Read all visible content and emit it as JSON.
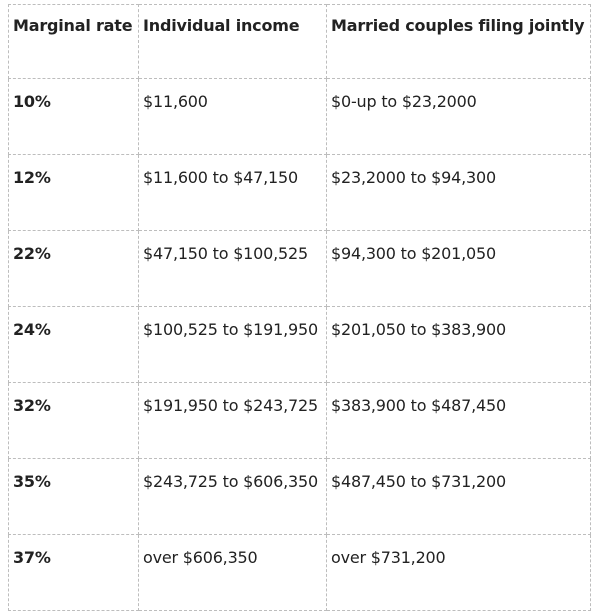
{
  "table": {
    "headers": [
      "Marginal rate",
      "Individual income",
      "Married couples filing jointly"
    ],
    "rows": [
      {
        "rate": "10%",
        "individual": "$11,600",
        "married": "$0-up to $23,2000"
      },
      {
        "rate": "12%",
        "individual": "$11,600 to $47,150",
        "married": "$23,2000 to $94,300"
      },
      {
        "rate": "22%",
        "individual": "$47,150 to $100,525",
        "married": "$94,300 to $201,050"
      },
      {
        "rate": "24%",
        "individual": "$100,525 to $191,950",
        "married": "$201,050 to $383,900"
      },
      {
        "rate": "32%",
        "individual": "$191,950 to $243,725",
        "married": "$383,900 to $487,450"
      },
      {
        "rate": "35%",
        "individual": "$243,725 to $606,350",
        "married": "$487,450 to $731,200"
      },
      {
        "rate": "37%",
        "individual": "over $606,350",
        "married": "over $731,200"
      }
    ]
  },
  "colors": {
    "text": "#222222",
    "border": "#bdbdbd",
    "background": "#ffffff"
  }
}
